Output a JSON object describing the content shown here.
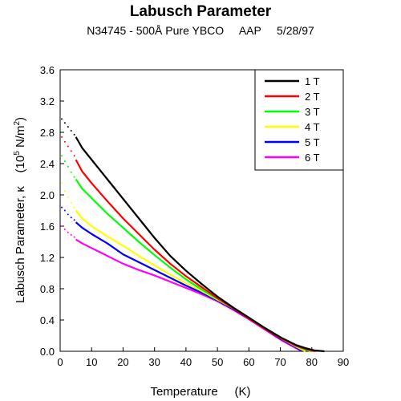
{
  "chart_data": {
    "type": "line",
    "title": "Labusch Parameter",
    "subtitle": "N34745 - 500Å Pure YBCO     AAP     5/28/97",
    "xlabel": "Temperature     (K)",
    "ylabel_main": "Labusch Parameter, κ",
    "ylabel_units_prefix": "(10",
    "ylabel_units_exp": "5",
    "ylabel_units_mid": " N/m",
    "ylabel_units_exp2": "2",
    "ylabel_units_suffix": ")",
    "xlim": [
      0,
      90
    ],
    "ylim": [
      0,
      3.6
    ],
    "xticks": [
      "0",
      "10",
      "20",
      "30",
      "40",
      "50",
      "60",
      "70",
      "80",
      "90"
    ],
    "yticks": [
      "0.0",
      "0.4",
      "0.8",
      "1.2",
      "1.6",
      "2.0",
      "2.4",
      "2.8",
      "3.2",
      "3.6"
    ],
    "grid": false,
    "legend_position": "top-right",
    "series": [
      {
        "name": "1 T",
        "color": "#000000",
        "x": [
          5,
          7,
          10,
          15,
          20,
          25,
          30,
          35,
          40,
          45,
          50,
          55,
          60,
          65,
          70,
          75,
          78,
          81,
          84
        ],
        "y": [
          2.74,
          2.6,
          2.45,
          2.2,
          1.95,
          1.7,
          1.45,
          1.22,
          1.03,
          0.86,
          0.7,
          0.56,
          0.43,
          0.3,
          0.18,
          0.08,
          0.04,
          0.01,
          0.0
        ],
        "dots_x": [
          0.5,
          1.5,
          2.5,
          3.5,
          4.5
        ],
        "dots_y": [
          2.97,
          2.92,
          2.87,
          2.82,
          2.77
        ]
      },
      {
        "name": "2 T",
        "color": "#ff0000",
        "x": [
          5,
          7,
          10,
          15,
          20,
          25,
          30,
          35,
          40,
          45,
          50,
          55,
          60,
          65,
          70,
          75,
          78,
          81
        ],
        "y": [
          2.45,
          2.3,
          2.15,
          1.92,
          1.7,
          1.5,
          1.3,
          1.12,
          0.96,
          0.82,
          0.68,
          0.55,
          0.42,
          0.29,
          0.17,
          0.07,
          0.03,
          0.0
        ],
        "dots_x": [
          0.5,
          1.5,
          2.5,
          3.5,
          4.5
        ],
        "dots_y": [
          2.74,
          2.68,
          2.62,
          2.56,
          2.5
        ]
      },
      {
        "name": "3 T",
        "color": "#00ff00",
        "x": [
          5,
          7,
          10,
          15,
          20,
          25,
          30,
          35,
          40,
          45,
          50,
          55,
          60,
          65,
          70,
          75,
          78,
          80
        ],
        "y": [
          2.2,
          2.08,
          1.96,
          1.76,
          1.58,
          1.4,
          1.23,
          1.07,
          0.92,
          0.79,
          0.67,
          0.55,
          0.43,
          0.3,
          0.18,
          0.07,
          0.02,
          0.0
        ],
        "dots_x": [
          0.5,
          1.5,
          2.5,
          3.5,
          4.5
        ],
        "dots_y": [
          2.5,
          2.43,
          2.36,
          2.29,
          2.23
        ]
      },
      {
        "name": "4 T",
        "color": "#ffff00",
        "x": [
          5,
          7,
          10,
          15,
          20,
          25,
          30,
          35,
          40,
          45,
          50,
          55,
          60,
          65,
          70,
          75,
          78
        ],
        "y": [
          1.8,
          1.7,
          1.6,
          1.47,
          1.35,
          1.22,
          1.1,
          0.98,
          0.87,
          0.77,
          0.66,
          0.55,
          0.43,
          0.3,
          0.17,
          0.06,
          0.0
        ],
        "dots_x": [
          0.5,
          1.5,
          2.5,
          3.5,
          4.5
        ],
        "dots_y": [
          2.15,
          2.05,
          1.97,
          1.9,
          1.84
        ]
      },
      {
        "name": "5 T",
        "color": "#0000ff",
        "x": [
          5,
          7,
          10,
          15,
          20,
          25,
          30,
          35,
          40,
          45,
          50,
          55,
          60,
          65,
          70,
          75,
          77
        ],
        "y": [
          1.65,
          1.58,
          1.5,
          1.38,
          1.24,
          1.14,
          1.04,
          0.94,
          0.84,
          0.75,
          0.65,
          0.54,
          0.42,
          0.29,
          0.16,
          0.05,
          0.0
        ],
        "dots_x": [
          0.5,
          1.5,
          2.5,
          3.5,
          4.5
        ],
        "dots_y": [
          1.84,
          1.8,
          1.75,
          1.71,
          1.68
        ]
      },
      {
        "name": "6 T",
        "color": "#ff00ff",
        "x": [
          5,
          7,
          10,
          15,
          20,
          25,
          30,
          35,
          40,
          45,
          50,
          55,
          60,
          65,
          70,
          75,
          77
        ],
        "y": [
          1.43,
          1.38,
          1.32,
          1.22,
          1.12,
          1.04,
          0.97,
          0.89,
          0.81,
          0.73,
          0.64,
          0.53,
          0.41,
          0.28,
          0.15,
          0.04,
          0.0
        ],
        "dots_x": [
          0.5,
          1.5,
          2.5,
          3.5,
          4.5
        ],
        "dots_y": [
          1.6,
          1.56,
          1.52,
          1.49,
          1.46
        ]
      }
    ]
  }
}
